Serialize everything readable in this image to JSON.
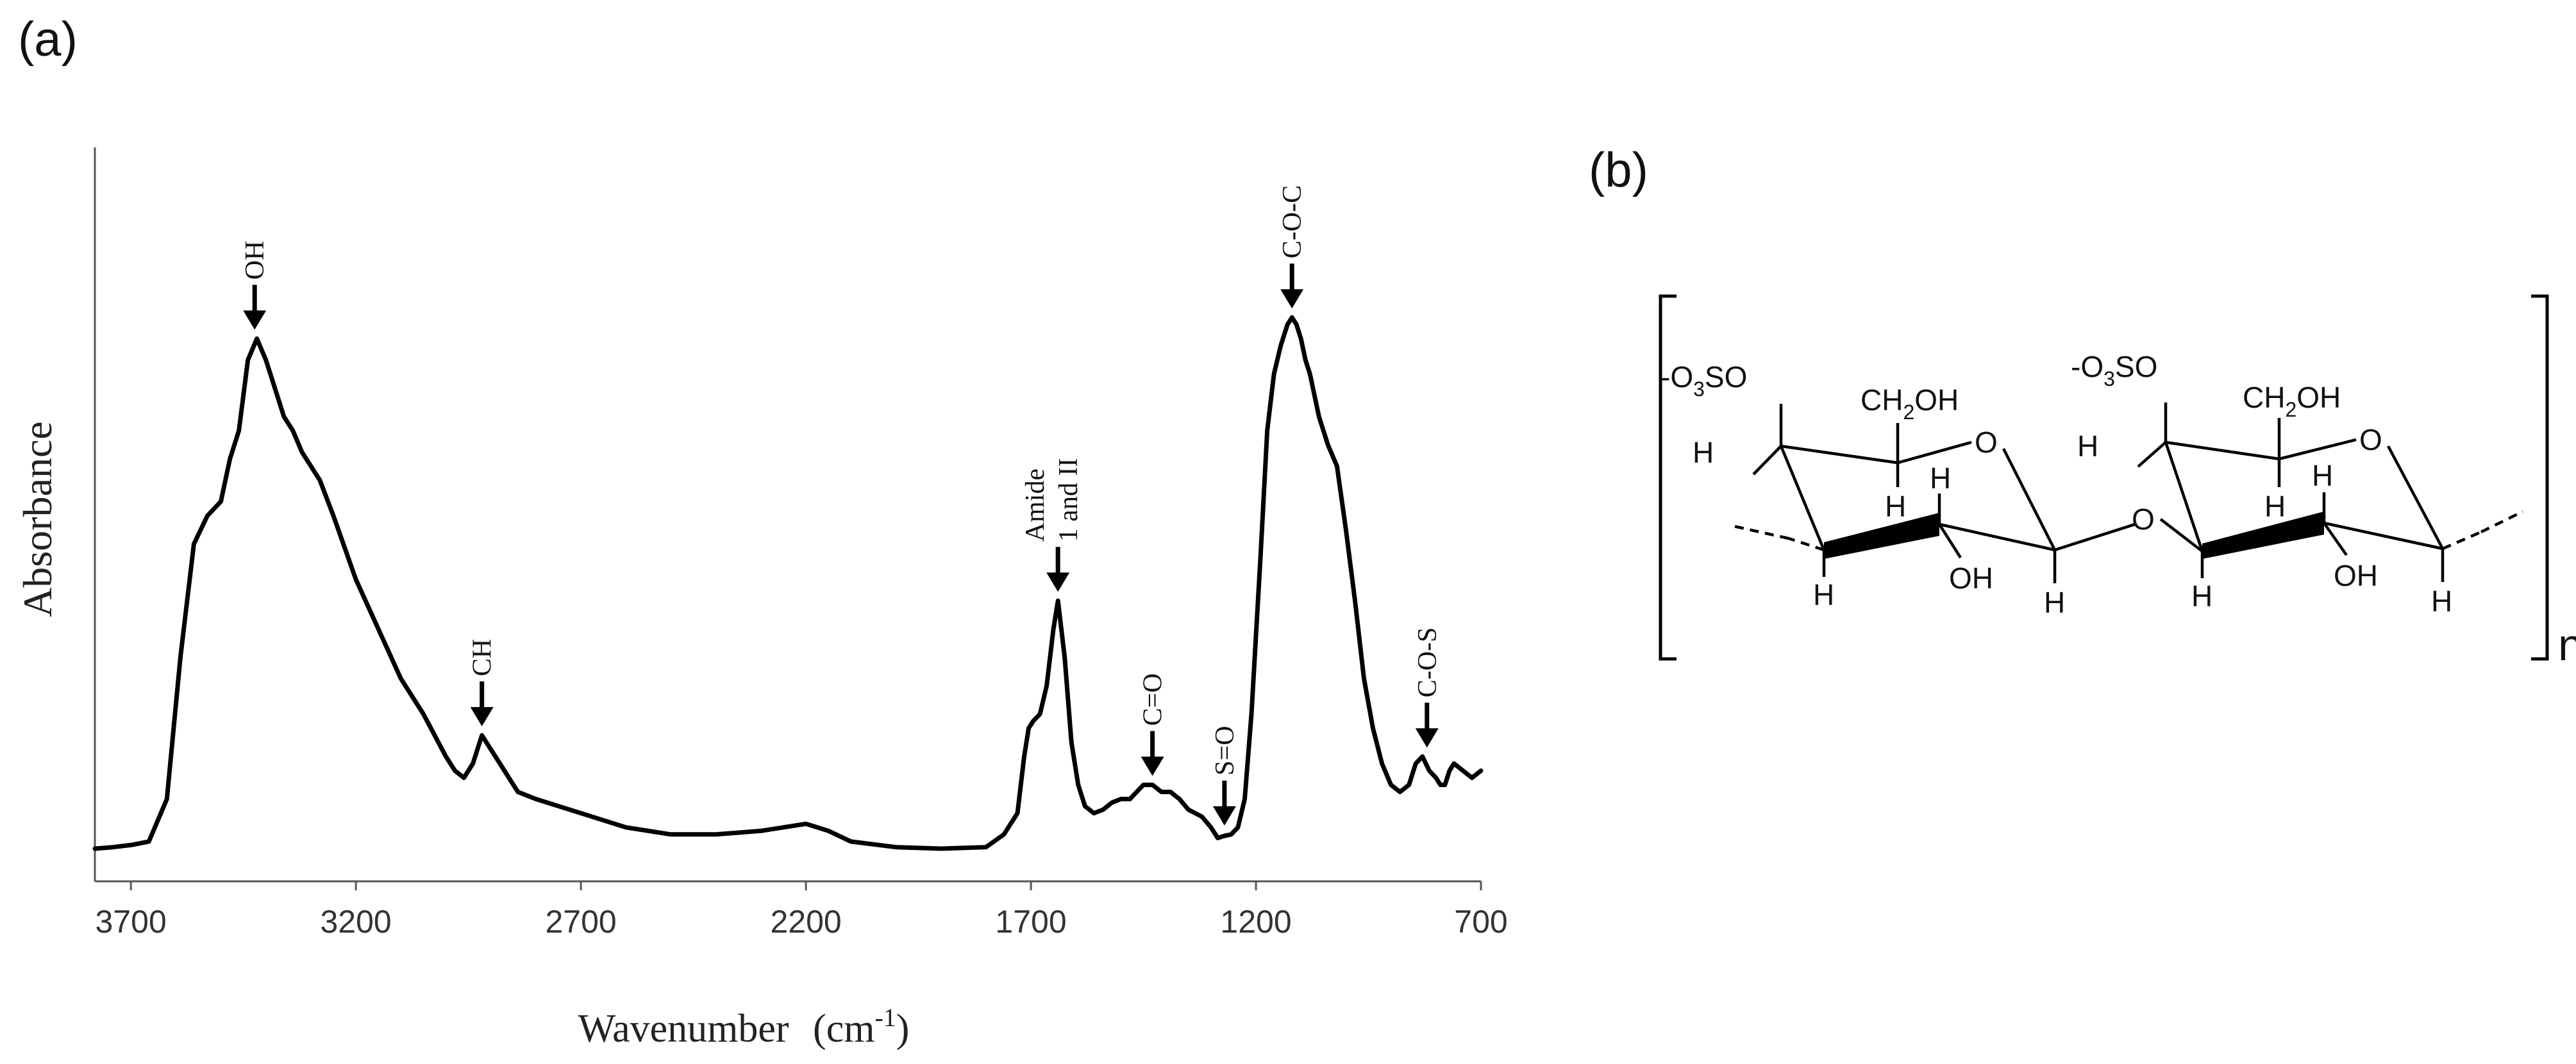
{
  "panels": {
    "a_label": "(a)",
    "b_label": "(b)"
  },
  "chart_data": {
    "type": "line",
    "title": "",
    "xlabel": "Wavenumber",
    "xlabel_unit": "(cm",
    "xlabel_unit_sup": "-1",
    "xlabel_unit_close": ")",
    "ylabel": "Absorbance",
    "xlim": [
      3780,
      700
    ],
    "x_reversed": true,
    "y_ticks_shown": false,
    "grid": false,
    "legend": "none",
    "line_color": "#000000",
    "xticks": [
      {
        "value": 3700,
        "label": "3700"
      },
      {
        "value": 3200,
        "label": "3200"
      },
      {
        "value": 2700,
        "label": "2700"
      },
      {
        "value": 2200,
        "label": "2200"
      },
      {
        "value": 1700,
        "label": "1700"
      },
      {
        "value": 1200,
        "label": "1200"
      },
      {
        "value": 700,
        "label": "700"
      }
    ],
    "ylim": [
      0,
      1.0
    ],
    "series": [
      {
        "x": [
          3780,
          3740,
          3700,
          3660,
          3620,
          3590,
          3560,
          3530,
          3500,
          3480,
          3460,
          3440,
          3420,
          3400,
          3380,
          3360,
          3340,
          3320,
          3300,
          3280,
          3250,
          3200,
          3150,
          3100,
          3050,
          3000,
          2980,
          2960,
          2940,
          2920,
          2910,
          2900,
          2880,
          2860,
          2840,
          2800,
          2700,
          2600,
          2500,
          2400,
          2300,
          2250,
          2200,
          2150,
          2100,
          2000,
          1900,
          1800,
          1760,
          1730,
          1715,
          1705,
          1695,
          1680,
          1665,
          1650,
          1640,
          1625,
          1610,
          1595,
          1580,
          1560,
          1540,
          1520,
          1500,
          1480,
          1465,
          1450,
          1430,
          1410,
          1390,
          1370,
          1350,
          1320,
          1300,
          1285,
          1270,
          1255,
          1240,
          1225,
          1210,
          1190,
          1175,
          1160,
          1145,
          1130,
          1120,
          1110,
          1100,
          1090,
          1080,
          1070,
          1060,
          1050,
          1040,
          1020,
          1000,
          980,
          960,
          940,
          920,
          900,
          880,
          860,
          845,
          830,
          815,
          800,
          790,
          780,
          770,
          760,
          740,
          720,
          700
        ],
        "y": [
          0.01,
          0.012,
          0.015,
          0.02,
          0.08,
          0.28,
          0.44,
          0.48,
          0.5,
          0.56,
          0.6,
          0.7,
          0.73,
          0.7,
          0.66,
          0.62,
          0.6,
          0.57,
          0.55,
          0.53,
          0.48,
          0.39,
          0.32,
          0.25,
          0.2,
          0.14,
          0.12,
          0.11,
          0.13,
          0.17,
          0.16,
          0.15,
          0.13,
          0.11,
          0.09,
          0.08,
          0.06,
          0.04,
          0.03,
          0.03,
          0.035,
          0.04,
          0.045,
          0.035,
          0.02,
          0.012,
          0.01,
          0.012,
          0.03,
          0.06,
          0.14,
          0.18,
          0.19,
          0.2,
          0.24,
          0.32,
          0.36,
          0.28,
          0.16,
          0.1,
          0.07,
          0.06,
          0.065,
          0.075,
          0.08,
          0.08,
          0.09,
          0.1,
          0.1,
          0.09,
          0.09,
          0.08,
          0.065,
          0.055,
          0.04,
          0.025,
          0.028,
          0.03,
          0.04,
          0.08,
          0.2,
          0.42,
          0.6,
          0.68,
          0.72,
          0.75,
          0.76,
          0.75,
          0.73,
          0.7,
          0.68,
          0.65,
          0.62,
          0.6,
          0.58,
          0.55,
          0.46,
          0.36,
          0.25,
          0.18,
          0.13,
          0.1,
          0.09,
          0.1,
          0.13,
          0.14,
          0.12,
          0.11,
          0.1,
          0.1,
          0.12,
          0.13,
          0.12,
          0.11,
          0.12
        ]
      }
    ],
    "annotations": [
      {
        "text": "OH",
        "x": 3425,
        "peak_y": 0.73
      },
      {
        "text": "CH",
        "x": 2920,
        "peak_y": 0.17
      },
      {
        "text": "Amide",
        "text2": "1 and II",
        "x": 1640,
        "peak_y": 0.36
      },
      {
        "text": "C=O",
        "x": 1430,
        "peak_y": 0.1
      },
      {
        "text": "S=O",
        "x": 1270,
        "peak_y": 0.03
      },
      {
        "text": "C-O-C",
        "x": 1120,
        "peak_y": 0.76
      },
      {
        "text": "C-O-S",
        "x": 820,
        "peak_y": 0.14
      }
    ]
  },
  "structure": {
    "substituent_left": "-O",
    "substituent_left_sub": "3",
    "substituent_left_tail": "SO",
    "substituent_right": "-O",
    "substituent_right_sub": "3",
    "substituent_right_tail": "SO",
    "ch2oh_left": "CH",
    "ch2oh_left_sub": "2",
    "ch2oh_left_tail": "OH",
    "ch2oh_right": "CH",
    "ch2oh_right_sub": "2",
    "ch2oh_right_tail": "OH",
    "ring_o": "O",
    "bridge_o": "O",
    "h": "H",
    "oh": "OH",
    "repeat": "n"
  }
}
